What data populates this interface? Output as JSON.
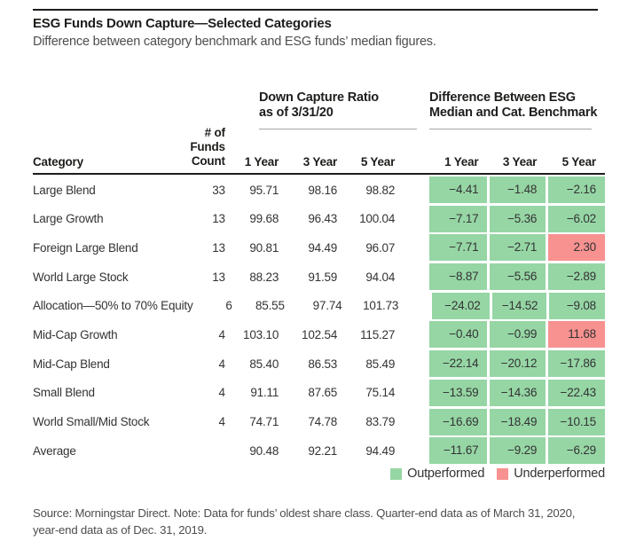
{
  "title": "ESG Funds Down Capture—Selected Categories",
  "subtitle": "Difference between category benchmark and ESG funds’ median figures.",
  "header": {
    "group_down_capture_line1": "Down Capture Ratio",
    "group_down_capture_line2": "as of 3/31/20",
    "group_difference_line1": "Difference Between ESG",
    "group_difference_line2": "Median and Cat. Benchmark",
    "col_category": "Category",
    "col_count_line1": "# of Funds",
    "col_count_line2": "Count",
    "col_years_dc": [
      "1 Year",
      "3 Year",
      "5 Year"
    ],
    "col_years_diff": [
      "1 Year",
      "3 Year",
      "5 Year"
    ]
  },
  "colors": {
    "outperformed": "#96d6a5",
    "underperformed": "#f79290",
    "rule": "#1d1d1b"
  },
  "chart_data": {
    "type": "table",
    "title": "ESG Funds Down Capture—Selected Categories",
    "subtitle": "Difference between category benchmark and ESG funds’ median figures.",
    "column_groups": [
      "Down Capture Ratio as of 3/31/20",
      "Difference Between ESG Median and Cat. Benchmark"
    ],
    "columns": [
      "Category",
      "# of Funds Count",
      "1 Year",
      "3 Year",
      "5 Year",
      "1 Year",
      "3 Year",
      "5 Year"
    ],
    "color_rule": "negative difference = Outperformed (green), positive difference = Underperformed (red)",
    "rows": [
      {
        "category": "Large Blend",
        "count": "33",
        "down_capture": [
          95.71,
          98.16,
          98.82
        ],
        "difference": [
          -4.41,
          -1.48,
          -2.16
        ]
      },
      {
        "category": "Large Growth",
        "count": "13",
        "down_capture": [
          99.68,
          96.43,
          100.04
        ],
        "difference": [
          -7.17,
          -5.36,
          -6.02
        ]
      },
      {
        "category": "Foreign Large Blend",
        "count": "13",
        "down_capture": [
          90.81,
          94.49,
          96.07
        ],
        "difference": [
          -7.71,
          -2.71,
          2.3
        ]
      },
      {
        "category": "World Large Stock",
        "count": "13",
        "down_capture": [
          88.23,
          91.59,
          94.04
        ],
        "difference": [
          -8.87,
          -5.56,
          -2.89
        ]
      },
      {
        "category": "Allocation—50% to 70% Equity",
        "count": "6",
        "down_capture": [
          85.55,
          97.74,
          101.73
        ],
        "difference": [
          -24.02,
          -14.52,
          -9.08
        ]
      },
      {
        "category": "Mid-Cap Growth",
        "count": "4",
        "down_capture": [
          103.1,
          102.54,
          115.27
        ],
        "difference": [
          -0.4,
          -0.99,
          11.68
        ]
      },
      {
        "category": "Mid-Cap Blend",
        "count": "4",
        "down_capture": [
          85.4,
          86.53,
          85.49
        ],
        "difference": [
          -22.14,
          -20.12,
          -17.86
        ]
      },
      {
        "category": "Small Blend",
        "count": "4",
        "down_capture": [
          91.11,
          87.65,
          75.14
        ],
        "difference": [
          -13.59,
          -14.36,
          -22.43
        ]
      },
      {
        "category": "World Small/Mid Stock",
        "count": "4",
        "down_capture": [
          74.71,
          74.78,
          83.79
        ],
        "difference": [
          -16.69,
          -18.49,
          -10.15
        ]
      },
      {
        "category": "Average",
        "count": "",
        "down_capture": [
          90.48,
          92.21,
          94.49
        ],
        "difference": [
          -11.67,
          -9.29,
          -6.29
        ]
      }
    ]
  },
  "legend": {
    "outperformed_label": "Outperformed",
    "underperformed_label": "Underperformed"
  },
  "footnote_line1": "Source: Morningstar Direct. Note: Data for funds’ oldest share class. Quarter-end data as of March 31, 2020,",
  "footnote_line2": "year-end data as of Dec. 31, 2019."
}
